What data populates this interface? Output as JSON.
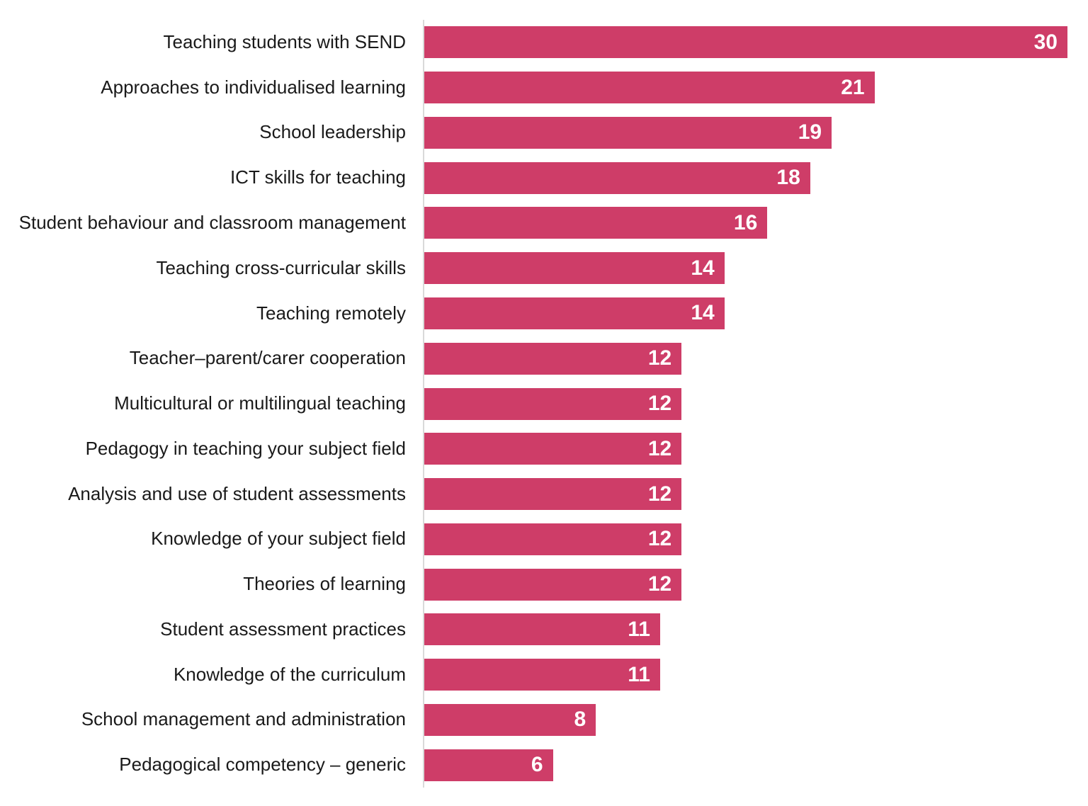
{
  "chart_data": {
    "type": "bar",
    "orientation": "horizontal",
    "title": "",
    "xlabel": "",
    "ylabel": "",
    "categories": [
      "Teaching students with SEND",
      "Approaches to individualised learning",
      "School leadership",
      "ICT skills for teaching",
      "Student behaviour and classroom management",
      "Teaching cross-curricular skills",
      "Teaching remotely",
      "Teacher–parent/carer cooperation",
      "Multicultural or multilingual teaching",
      "Pedagogy in teaching your subject field",
      "Analysis and use of student assessments",
      "Knowledge of your subject field",
      "Theories of learning",
      "Student assessment practices",
      "Knowledge of the curriculum",
      "School management and administration",
      "Pedagogical competency – generic"
    ],
    "values": [
      30,
      21,
      19,
      18,
      16,
      14,
      14,
      12,
      12,
      12,
      12,
      12,
      12,
      11,
      11,
      8,
      6
    ],
    "xlim": [
      0,
      30
    ],
    "value_labels_shown": true,
    "legend_position": "none",
    "grid": "off",
    "axis_ticks": "none"
  },
  "style": {
    "bar_color": "#ce3d68",
    "value_label_color": "#ffffff",
    "category_label_color": "#1a1a1a",
    "axis_line_color": "#d9d9d9",
    "background_color": "#ffffff"
  }
}
